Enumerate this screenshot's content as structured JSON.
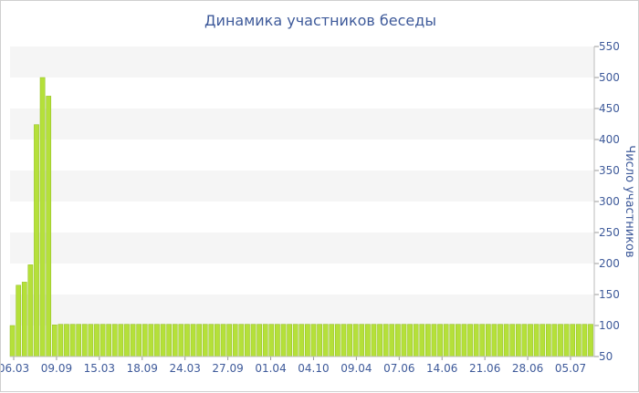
{
  "chart_data": {
    "type": "bar",
    "title": "Динамика участников беседы",
    "ylabel": "Число участников",
    "ylim": [
      50,
      550
    ],
    "yticks": [
      50,
      100,
      150,
      200,
      250,
      300,
      350,
      400,
      450,
      500,
      550
    ],
    "x_tick_labels": [
      "06.03",
      "09.09",
      "15.03",
      "18.09",
      "24.03",
      "27.09",
      "01.04",
      "04.10",
      "09.04",
      "07.06",
      "14.06",
      "21.06",
      "28.06",
      "05.07"
    ],
    "values": [
      100,
      165,
      170,
      198,
      424,
      500,
      470,
      101,
      102,
      102,
      102,
      102,
      102,
      102,
      102,
      102,
      102,
      102,
      102,
      102,
      102,
      102,
      102,
      102,
      102,
      102,
      102,
      102,
      102,
      102,
      102,
      102,
      102,
      102,
      102,
      102,
      102,
      102,
      102,
      102,
      102,
      102,
      102,
      102,
      102,
      102,
      102,
      102,
      102,
      102,
      102,
      102,
      102,
      102,
      102,
      102,
      102,
      102,
      102,
      102,
      102,
      102,
      102,
      102,
      102,
      102,
      102,
      102,
      102,
      102,
      102,
      102,
      102,
      102,
      102,
      102,
      102,
      102,
      102,
      102,
      102,
      102,
      102,
      102,
      102,
      102,
      102,
      102,
      102,
      102,
      102,
      102,
      102,
      102,
      102,
      102,
      102
    ],
    "bar_color": "#b5e03a",
    "bar_edge_color": "#8fbd1c",
    "band_color": "#f5f5f5",
    "text_color": "#3e5a9a",
    "axis_side": "right",
    "grid": true
  }
}
